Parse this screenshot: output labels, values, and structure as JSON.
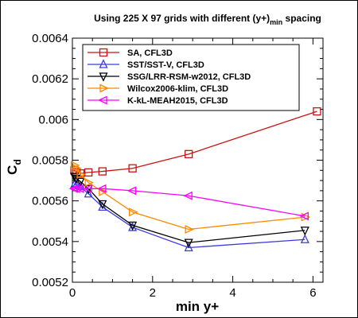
{
  "chart_data": {
    "type": "line",
    "title": "Using 225 X 97 grids with different (y+)",
    "title_subscript": "min",
    "title_suffix": " spacing",
    "xlabel": "min y+",
    "ylabel": "C",
    "ylabel_subscript": "d",
    "xlim": [
      0,
      6.25
    ],
    "ylim": [
      0.0052,
      0.0064
    ],
    "xticks": [
      0,
      2,
      4,
      6
    ],
    "xtick_labels": [
      "0",
      "2",
      "4",
      "6"
    ],
    "yticks": [
      0.0052,
      0.0054,
      0.0056,
      0.0058,
      0.006,
      0.0062,
      0.0064
    ],
    "ytick_labels": [
      "0.0052",
      "0.0054",
      "0.0056",
      "0.0058",
      "0.006",
      "0.0062",
      "0.0064"
    ],
    "legend_position": "top-right",
    "grid": false,
    "series": [
      {
        "name": "SA, CFL3D",
        "color": "#cc1111",
        "marker": "square",
        "x": [
          0.05,
          0.1,
          0.2,
          0.4,
          0.75,
          1.5,
          2.9,
          6.1
        ],
        "y": [
          0.00575,
          0.00574,
          0.005735,
          0.00574,
          0.005745,
          0.00576,
          0.00583,
          0.00604
        ]
      },
      {
        "name": "SST/SST-V, CFL3D",
        "color": "#3b3bdd",
        "marker": "triangle-up",
        "x": [
          0.05,
          0.1,
          0.2,
          0.4,
          0.75,
          1.5,
          2.9,
          5.8
        ],
        "y": [
          0.00568,
          0.00568,
          0.00567,
          0.005635,
          0.00557,
          0.00547,
          0.00537,
          0.00541
        ]
      },
      {
        "name": "SSG/LRR-RSM-w2012, CFL3D",
        "color": "#000000",
        "marker": "triangle-down",
        "x": [
          0.05,
          0.1,
          0.2,
          0.4,
          0.75,
          1.5,
          2.9,
          5.8
        ],
        "y": [
          0.00572,
          0.00571,
          0.005695,
          0.00566,
          0.005585,
          0.00548,
          0.005395,
          0.005455
        ]
      },
      {
        "name": "Wilcox2006-klim, CFL3D",
        "color": "#ff8800",
        "marker": "triangle-right",
        "x": [
          0.05,
          0.1,
          0.2,
          0.4,
          0.75,
          1.5,
          2.9,
          5.8
        ],
        "y": [
          0.005775,
          0.00576,
          0.00573,
          0.00569,
          0.005645,
          0.005545,
          0.00546,
          0.00552
        ]
      },
      {
        "name": "K-kL-MEAH2015, CFL3D",
        "color": "#ff00ff",
        "marker": "triangle-left",
        "x": [
          0.05,
          0.1,
          0.2,
          0.4,
          0.75,
          1.5,
          2.9,
          5.8
        ],
        "y": [
          0.00566,
          0.00566,
          0.00566,
          0.00566,
          0.00566,
          0.00565,
          0.005625,
          0.005525
        ]
      }
    ]
  }
}
